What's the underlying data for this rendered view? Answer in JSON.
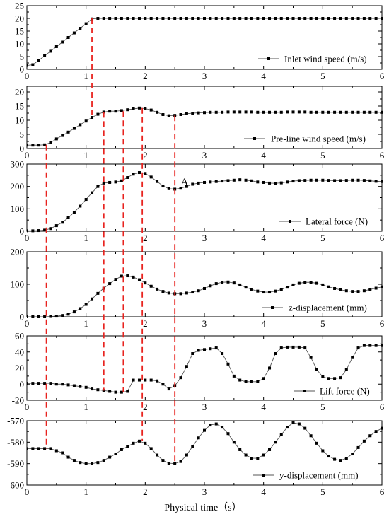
{
  "chart_data": {
    "type": "line",
    "xlabel": "Physical time（s）",
    "xlim": [
      0,
      6
    ],
    "x_ticks": [
      0,
      1,
      2,
      3,
      4,
      5,
      6
    ],
    "panels": [
      {
        "name": "Inlet wind speed (m/s)",
        "ylim": [
          0,
          25
        ],
        "y_ticks": [
          0,
          5,
          10,
          15,
          20,
          25
        ],
        "x": [
          0,
          0.1,
          0.2,
          0.3,
          0.4,
          0.5,
          0.6,
          0.7,
          0.8,
          0.9,
          1.0,
          1.1,
          1.2,
          1.3,
          1.4,
          1.5,
          1.6,
          1.7,
          1.8,
          1.9,
          2.0,
          2.1,
          2.2,
          2.3,
          2.4,
          2.5,
          2.6,
          2.7,
          2.8,
          2.9,
          3.0,
          3.1,
          3.2,
          3.3,
          3.4,
          3.5,
          3.6,
          3.7,
          3.8,
          3.9,
          4.0,
          4.1,
          4.2,
          4.3,
          4.4,
          4.5,
          4.6,
          4.7,
          4.8,
          4.9,
          5.0,
          5.1,
          5.2,
          5.3,
          5.4,
          5.5,
          5.6,
          5.7,
          5.8,
          5.9,
          6.0
        ],
        "y": [
          1.5,
          1.8,
          3.5,
          5.3,
          7.1,
          8.9,
          10.7,
          12.5,
          14.3,
          16.1,
          17.9,
          19.8,
          20,
          20,
          20,
          20,
          20,
          20,
          20,
          20,
          20,
          20,
          20,
          20,
          20,
          20,
          20,
          20,
          20,
          20,
          20,
          20,
          20,
          20,
          20,
          20,
          20,
          20,
          20,
          20,
          20,
          20,
          20,
          20,
          20,
          20,
          20,
          20,
          20,
          20,
          20,
          20,
          20,
          20,
          20,
          20,
          20,
          20,
          20,
          20,
          20
        ]
      },
      {
        "name": "Pre-line wind speed (m/s)",
        "ylim": [
          0,
          22
        ],
        "y_ticks": [
          0,
          5,
          10,
          15,
          20
        ],
        "x": [
          0,
          0.1,
          0.2,
          0.3,
          0.4,
          0.5,
          0.6,
          0.7,
          0.8,
          0.9,
          1.0,
          1.1,
          1.2,
          1.3,
          1.4,
          1.5,
          1.6,
          1.7,
          1.8,
          1.9,
          2.0,
          2.1,
          2.2,
          2.3,
          2.4,
          2.5,
          2.6,
          2.7,
          2.8,
          2.9,
          3.0,
          3.1,
          3.2,
          3.3,
          3.4,
          3.5,
          3.6,
          3.7,
          3.8,
          3.9,
          4.0,
          4.1,
          4.2,
          4.3,
          4.4,
          4.5,
          4.6,
          4.7,
          4.8,
          4.9,
          5.0,
          5.1,
          5.2,
          5.3,
          5.4,
          5.5,
          5.6,
          5.7,
          5.8,
          5.9,
          6.0
        ],
        "y": [
          1.2,
          1.2,
          1.2,
          1.3,
          2.1,
          3.4,
          4.6,
          5.8,
          7.1,
          8.4,
          9.7,
          11.0,
          12.1,
          12.9,
          13.2,
          13.2,
          13.4,
          13.7,
          14.0,
          14.3,
          14.1,
          13.6,
          12.8,
          12.0,
          11.6,
          11.7,
          12.0,
          12.3,
          12.5,
          12.6,
          12.7,
          12.8,
          12.8,
          12.8,
          12.9,
          12.9,
          12.9,
          12.9,
          12.9,
          12.8,
          12.8,
          12.8,
          12.8,
          12.8,
          12.9,
          12.9,
          12.9,
          12.9,
          12.8,
          12.8,
          12.8,
          12.8,
          12.8,
          12.8,
          12.8,
          12.8,
          12.8,
          12.8,
          12.8,
          12.8,
          12.8
        ]
      },
      {
        "name": "Lateral force (N)",
        "ylim": [
          0,
          300
        ],
        "y_ticks": [
          0,
          100,
          200,
          300
        ],
        "annotation": "A",
        "x": [
          0,
          0.1,
          0.2,
          0.3,
          0.4,
          0.5,
          0.6,
          0.7,
          0.8,
          0.9,
          1.0,
          1.1,
          1.2,
          1.3,
          1.4,
          1.5,
          1.6,
          1.7,
          1.8,
          1.9,
          2.0,
          2.1,
          2.2,
          2.3,
          2.4,
          2.5,
          2.6,
          2.7,
          2.8,
          2.9,
          3.0,
          3.1,
          3.2,
          3.3,
          3.4,
          3.5,
          3.6,
          3.7,
          3.8,
          3.9,
          4.0,
          4.1,
          4.2,
          4.3,
          4.4,
          4.5,
          4.6,
          4.7,
          4.8,
          4.9,
          5.0,
          5.1,
          5.2,
          5.3,
          5.4,
          5.5,
          5.6,
          5.7,
          5.8,
          5.9,
          6.0
        ],
        "y": [
          2,
          2,
          3,
          5,
          12,
          25,
          40,
          60,
          85,
          112,
          142,
          172,
          200,
          215,
          218,
          220,
          225,
          240,
          255,
          262,
          258,
          242,
          222,
          202,
          190,
          188,
          192,
          200,
          210,
          215,
          218,
          220,
          222,
          224,
          226,
          228,
          230,
          228,
          225,
          220,
          218,
          215,
          214,
          216,
          220,
          224,
          226,
          227,
          228,
          228,
          228,
          227,
          226,
          226,
          227,
          228,
          228,
          227,
          225,
          223,
          222
        ]
      },
      {
        "name": "z-displacement (mm)",
        "ylim": [
          0,
          200
        ],
        "y_ticks": [
          0,
          100,
          200
        ],
        "x": [
          0,
          0.1,
          0.2,
          0.3,
          0.4,
          0.5,
          0.6,
          0.7,
          0.8,
          0.9,
          1.0,
          1.1,
          1.2,
          1.3,
          1.4,
          1.5,
          1.6,
          1.7,
          1.8,
          1.9,
          2.0,
          2.1,
          2.2,
          2.3,
          2.4,
          2.5,
          2.6,
          2.7,
          2.8,
          2.9,
          3.0,
          3.1,
          3.2,
          3.3,
          3.4,
          3.5,
          3.6,
          3.7,
          3.8,
          3.9,
          4.0,
          4.1,
          4.2,
          4.3,
          4.4,
          4.5,
          4.6,
          4.7,
          4.8,
          4.9,
          5.0,
          5.1,
          5.2,
          5.3,
          5.4,
          5.5,
          5.6,
          5.7,
          5.8,
          5.9,
          6.0
        ],
        "y": [
          0,
          0,
          0,
          0,
          1,
          2,
          4,
          8,
          15,
          25,
          38,
          55,
          72,
          88,
          102,
          115,
          125,
          126,
          122,
          114,
          104,
          94,
          85,
          78,
          73,
          71,
          71,
          73,
          76,
          80,
          87,
          95,
          102,
          106,
          107,
          104,
          98,
          91,
          84,
          79,
          76,
          76,
          79,
          84,
          91,
          98,
          103,
          106,
          106,
          103,
          98,
          92,
          87,
          83,
          80,
          78,
          78,
          80,
          84,
          88,
          92
        ]
      },
      {
        "name": "Lift force (N)",
        "ylim": [
          -20,
          60
        ],
        "y_ticks": [
          -20,
          0,
          20,
          40,
          60
        ],
        "x": [
          0,
          0.1,
          0.2,
          0.3,
          0.4,
          0.5,
          0.6,
          0.7,
          0.8,
          0.9,
          1.0,
          1.1,
          1.2,
          1.3,
          1.4,
          1.5,
          1.6,
          1.7,
          1.8,
          1.9,
          2.0,
          2.1,
          2.2,
          2.3,
          2.4,
          2.5,
          2.6,
          2.7,
          2.8,
          2.9,
          3.0,
          3.1,
          3.2,
          3.3,
          3.4,
          3.5,
          3.6,
          3.7,
          3.8,
          3.9,
          4.0,
          4.1,
          4.2,
          4.3,
          4.4,
          4.5,
          4.6,
          4.7,
          4.8,
          4.9,
          5.0,
          5.1,
          5.2,
          5.3,
          5.4,
          5.5,
          5.6,
          5.7,
          5.8,
          5.9,
          6.0
        ],
        "y": [
          1,
          1,
          1,
          1,
          1,
          0,
          0,
          -1,
          -2,
          -3,
          -4,
          -6,
          -7,
          -8,
          -9,
          -10,
          -10,
          -9,
          5,
          5,
          5,
          5,
          4,
          0,
          -6,
          -2,
          8,
          22,
          38,
          42,
          43,
          44,
          45,
          38,
          25,
          10,
          5,
          3,
          3,
          3,
          7,
          20,
          38,
          45,
          46,
          46,
          46,
          45,
          33,
          18,
          9,
          7,
          7,
          8,
          18,
          33,
          45,
          48,
          48,
          48,
          48
        ]
      },
      {
        "name": "y-displacement (mm)",
        "ylim": [
          -600,
          -570
        ],
        "y_ticks": [
          -600,
          -590,
          -580,
          -570
        ],
        "x": [
          0,
          0.1,
          0.2,
          0.3,
          0.4,
          0.5,
          0.6,
          0.7,
          0.8,
          0.9,
          1.0,
          1.1,
          1.2,
          1.3,
          1.4,
          1.5,
          1.6,
          1.7,
          1.8,
          1.9,
          2.0,
          2.1,
          2.2,
          2.3,
          2.4,
          2.5,
          2.6,
          2.7,
          2.8,
          2.9,
          3.0,
          3.1,
          3.2,
          3.3,
          3.4,
          3.5,
          3.6,
          3.7,
          3.8,
          3.9,
          4.0,
          4.1,
          4.2,
          4.3,
          4.4,
          4.5,
          4.6,
          4.7,
          4.8,
          4.9,
          5.0,
          5.1,
          5.2,
          5.3,
          5.4,
          5.5,
          5.6,
          5.7,
          5.8,
          5.9,
          6.0
        ],
        "y": [
          -583,
          -583,
          -583,
          -583,
          -583,
          -584,
          -585,
          -587,
          -588.5,
          -589.5,
          -590,
          -590,
          -589.5,
          -588.5,
          -587,
          -585.5,
          -583.5,
          -582,
          -580.5,
          -579.5,
          -580.5,
          -583,
          -586,
          -588.5,
          -589.8,
          -590,
          -589,
          -586,
          -582,
          -578,
          -574.5,
          -572,
          -571.5,
          -573,
          -576,
          -580,
          -583.5,
          -586,
          -587.5,
          -587.5,
          -586,
          -583.5,
          -580,
          -576.5,
          -573,
          -571,
          -571.5,
          -573.5,
          -577,
          -580.5,
          -584,
          -586.5,
          -588,
          -588.5,
          -587.5,
          -585.5,
          -582.5,
          -579.5,
          -577,
          -575,
          -573.5
        ]
      }
    ]
  }
}
